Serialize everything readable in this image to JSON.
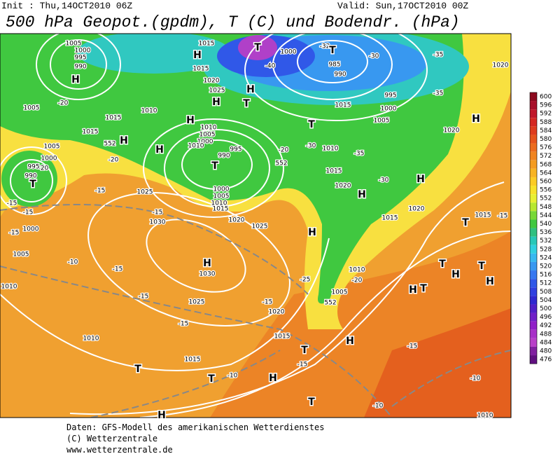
{
  "header": {
    "init": "Init : Thu,14OCT2010 06Z",
    "valid": "Valid: Sun,17OCT2010 00Z",
    "title": "500 hPa Geopot.(gpdm), T (C) und Bodendr. (hPa)"
  },
  "map_labels": [
    "T",
    "1000",
    "-40",
    "-32",
    "T",
    "985",
    "990",
    "-30",
    "-35",
    "1020",
    "995",
    "-35",
    "1000",
    "1005",
    "1020",
    "H",
    "H",
    "T",
    "T",
    "H",
    "1025",
    "1020",
    "1015",
    "H",
    "1015",
    "1010",
    "1015",
    "H",
    "1010",
    "1005",
    "1000",
    "H",
    "552",
    "H",
    "995",
    "990",
    "T",
    "-20",
    "552",
    "1010",
    "-30",
    "-35",
    "1015",
    "-30",
    "1020",
    "H",
    "H",
    "1020",
    "1015",
    "T",
    "1015",
    "-15",
    "1000",
    "1005",
    "1010",
    "1015",
    "1020",
    "1025",
    "H",
    "1025",
    "-15",
    "1030",
    "H",
    "1030",
    "-15",
    "-10",
    "-20",
    "-20",
    "-15",
    "T",
    "990",
    "995",
    "1000",
    "1005",
    "1005",
    "-20",
    "1000",
    "-15",
    "1005",
    "-15",
    "-15",
    "1010",
    "1025",
    "-15",
    "-15",
    "1010",
    "T",
    "1015",
    "T",
    "-10",
    "H",
    "H",
    "T",
    "H",
    "T",
    "-15",
    "-10",
    "-15",
    "1020",
    "-15",
    "1015",
    "1010",
    "-20",
    "1005",
    "T",
    "H",
    "T",
    "H",
    "T",
    "H",
    "-10",
    "1010",
    "-25",
    "552",
    "1005",
    "1000",
    "995",
    "990",
    "H",
    "1015",
    "1015",
    "1010"
  ],
  "colorbar": {
    "levels": [
      600,
      596,
      592,
      588,
      584,
      580,
      576,
      572,
      568,
      564,
      560,
      556,
      552,
      548,
      544,
      540,
      536,
      532,
      528,
      524,
      520,
      516,
      512,
      508,
      504,
      500,
      496,
      492,
      488,
      484,
      480,
      476
    ],
    "colors": [
      "#8c0a1e",
      "#a8102a",
      "#c0182a",
      "#d42822",
      "#de3c1e",
      "#e6541c",
      "#ec6c1e",
      "#f08420",
      "#f49c22",
      "#f8b424",
      "#fccc26",
      "#f8e22a",
      "#e8f032",
      "#b8e830",
      "#78d838",
      "#40c840",
      "#30c080",
      "#28c8b8",
      "#30d0e0",
      "#38b8f0",
      "#3898f0",
      "#3878f0",
      "#3058e8",
      "#3040e0",
      "#3028d0",
      "#5020c8",
      "#7020c8",
      "#9020c8",
      "#a830c8",
      "#b840c8",
      "#8020a0",
      "#601080"
    ]
  },
  "footer": {
    "lines": [
      "Daten: GFS-Modell des amerikanischen Wetterdienstes",
      "(C) Wetterzentrale",
      "www.wetterzentrale.de"
    ]
  }
}
